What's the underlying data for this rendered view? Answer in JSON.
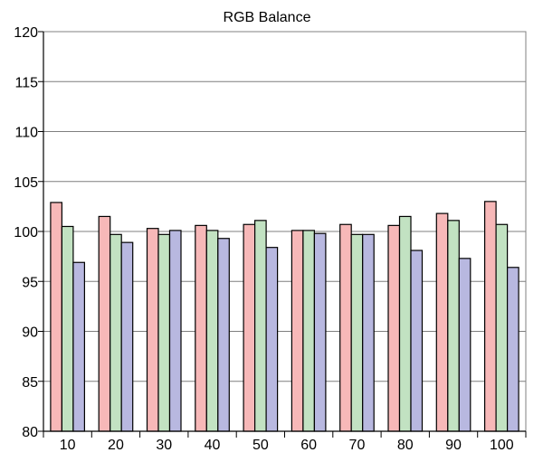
{
  "chart_data": {
    "type": "bar",
    "title": "RGB Balance",
    "xlabel": "",
    "ylabel": "",
    "categories": [
      "10",
      "20",
      "30",
      "40",
      "50",
      "60",
      "70",
      "80",
      "90",
      "100"
    ],
    "series": [
      {
        "color": "#f7b8b8",
        "values": [
          102.9,
          101.5,
          100.3,
          100.6,
          100.7,
          100.1,
          100.7,
          100.6,
          101.8,
          103.0
        ]
      },
      {
        "color": "#c2e2c2",
        "values": [
          100.5,
          99.7,
          99.7,
          100.1,
          101.1,
          100.1,
          99.7,
          101.5,
          101.1,
          100.7
        ]
      },
      {
        "color": "#b8b8e0",
        "values": [
          96.9,
          98.9,
          100.1,
          99.3,
          98.4,
          99.8,
          99.7,
          98.1,
          97.3,
          96.4
        ]
      }
    ],
    "ylim": [
      80,
      120
    ],
    "yticks": [
      80,
      85,
      90,
      95,
      100,
      105,
      110,
      115,
      120
    ],
    "grid": true,
    "legend": "none"
  }
}
